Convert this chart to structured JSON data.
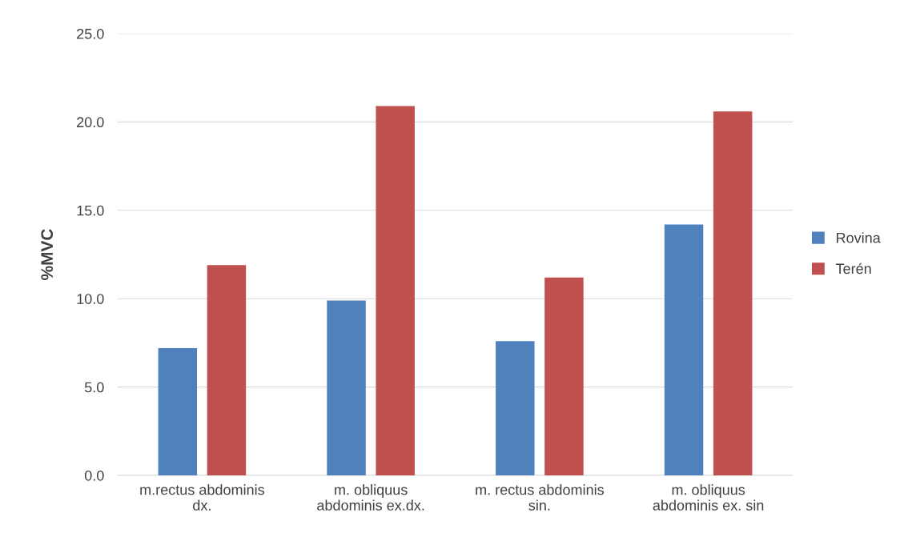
{
  "chart_data": {
    "type": "bar",
    "ylabel": "%MVC",
    "categories": [
      "m.rectus abdominis\ndx.",
      "m. obliquus\nabdominis ex.dx.",
      "m. rectus abdominis\nsin.",
      "m. obliquus\nabdominis ex. sin"
    ],
    "series": [
      {
        "name": "Rovina",
        "color": "#4f81bd",
        "values": [
          7.2,
          9.9,
          7.6,
          14.2
        ]
      },
      {
        "name": "Terén",
        "color": "#c0504d",
        "values": [
          11.9,
          20.9,
          11.2,
          20.6
        ]
      }
    ],
    "ylim": [
      0,
      25
    ],
    "yticks": [
      {
        "value": 0,
        "label": "0.0"
      },
      {
        "value": 5,
        "label": "5.0"
      },
      {
        "value": 10,
        "label": "10.0"
      },
      {
        "value": 15,
        "label": "15.0"
      },
      {
        "value": 20,
        "label": "20.0"
      },
      {
        "value": 25,
        "label": "25.0"
      }
    ],
    "grid": "y",
    "legend": "right"
  }
}
